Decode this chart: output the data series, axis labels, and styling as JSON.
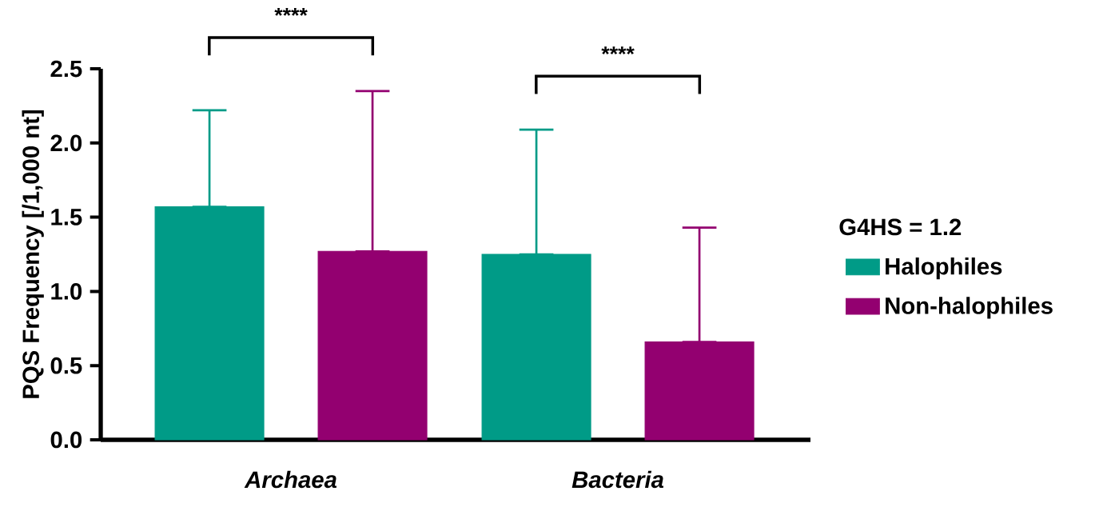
{
  "chart_data": {
    "type": "bar",
    "ylabel": "PQS Frequency [/1,000 nt]",
    "legend_title": "G4HS = 1.2",
    "categories": [
      "Archaea",
      "Bacteria"
    ],
    "series": [
      {
        "name": "Halophiles",
        "color": "#009b87",
        "values": [
          1.57,
          1.25
        ],
        "errors": [
          [
            1.57,
            2.22
          ],
          [
            1.25,
            2.09
          ]
        ]
      },
      {
        "name": "Non-halophiles",
        "color": "#930070",
        "values": [
          1.27,
          0.66
        ],
        "errors": [
          [
            1.27,
            2.35
          ],
          [
            0.66,
            1.43
          ]
        ]
      }
    ],
    "annotations": [
      "****",
      "****"
    ],
    "ylim": [
      0,
      2.5
    ],
    "yticks": [
      {
        "value": 0,
        "label": "0.0"
      },
      {
        "value": 0.5,
        "label": "0.5"
      },
      {
        "value": 1,
        "label": "1.0"
      },
      {
        "value": 1.5,
        "label": "1.5"
      },
      {
        "value": 2,
        "label": "2.0"
      },
      {
        "value": 2.5,
        "label": "2.5"
      }
    ],
    "grid": false,
    "legend": "right"
  }
}
